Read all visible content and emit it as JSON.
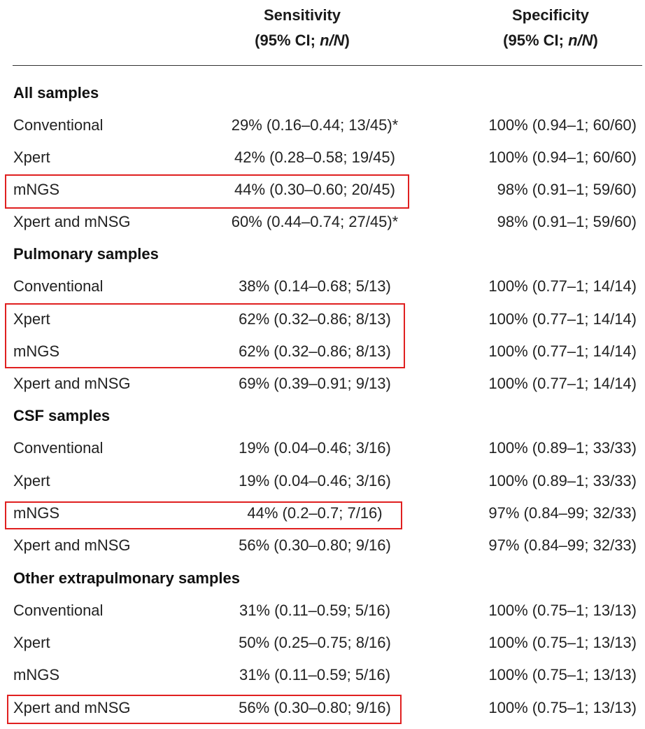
{
  "header": {
    "sensitivity": "Sensitivity",
    "specificity": "Specificity",
    "ci_prefix": "(95% CI; ",
    "ci_italic": "n/N",
    "ci_suffix": ")"
  },
  "sections": [
    {
      "title": "All samples",
      "rows": [
        {
          "label": "Conventional",
          "sensitivity": "29% (0.16–0.44; 13/45)*",
          "specificity": "100% (0.94–1; 60/60)"
        },
        {
          "label": "Xpert",
          "sensitivity": "42% (0.28–0.58; 19/45)",
          "specificity": "100% (0.94–1; 60/60)"
        },
        {
          "label": "mNGS",
          "sensitivity": "44% (0.30–0.60; 20/45)",
          "specificity": "98% (0.91–1; 59/60)"
        },
        {
          "label": "Xpert and mNSG",
          "sensitivity": "60% (0.44–0.74; 27/45)*",
          "specificity": "98% (0.91–1; 59/60)"
        }
      ]
    },
    {
      "title": "Pulmonary samples",
      "rows": [
        {
          "label": "Conventional",
          "sensitivity": "38% (0.14–0.68; 5/13)",
          "specificity": "100% (0.77–1; 14/14)"
        },
        {
          "label": "Xpert",
          "sensitivity": "62% (0.32–0.86; 8/13)",
          "specificity": "100% (0.77–1; 14/14)"
        },
        {
          "label": "mNGS",
          "sensitivity": "62% (0.32–0.86; 8/13)",
          "specificity": "100% (0.77–1; 14/14)"
        },
        {
          "label": "Xpert and mNSG",
          "sensitivity": "69% (0.39–0.91; 9/13)",
          "specificity": "100% (0.77–1; 14/14)"
        }
      ]
    },
    {
      "title": "CSF samples",
      "rows": [
        {
          "label": "Conventional",
          "sensitivity": "19% (0.04–0.46; 3/16)",
          "specificity": "100% (0.89–1; 33/33)"
        },
        {
          "label": "Xpert",
          "sensitivity": "19% (0.04–0.46; 3/16)",
          "specificity": "100% (0.89–1; 33/33)"
        },
        {
          "label": "mNGS",
          "sensitivity": "44% (0.2–0.7; 7/16)",
          "specificity": "97% (0.84–99; 32/33)"
        },
        {
          "label": "Xpert and mNSG",
          "sensitivity": "56% (0.30–0.80; 9/16)",
          "specificity": "97% (0.84–99; 32/33)"
        }
      ]
    },
    {
      "title": "Other extrapulmonary samples",
      "rows": [
        {
          "label": "Conventional",
          "sensitivity": "31% (0.11–0.59; 5/16)",
          "specificity": "100% (0.75–1; 13/13)"
        },
        {
          "label": "Xpert",
          "sensitivity": "50% (0.25–0.75; 8/16)",
          "specificity": "100% (0.75–1; 13/13)"
        },
        {
          "label": "mNGS",
          "sensitivity": "31% (0.11–0.59; 5/16)",
          "specificity": "100% (0.75–1; 13/13)"
        },
        {
          "label": "Xpert and mNSG",
          "sensitivity": "56% (0.30–0.80; 9/16)",
          "specificity": "100% (0.75–1; 13/13)"
        }
      ]
    }
  ],
  "highlight_color": "#e02020"
}
